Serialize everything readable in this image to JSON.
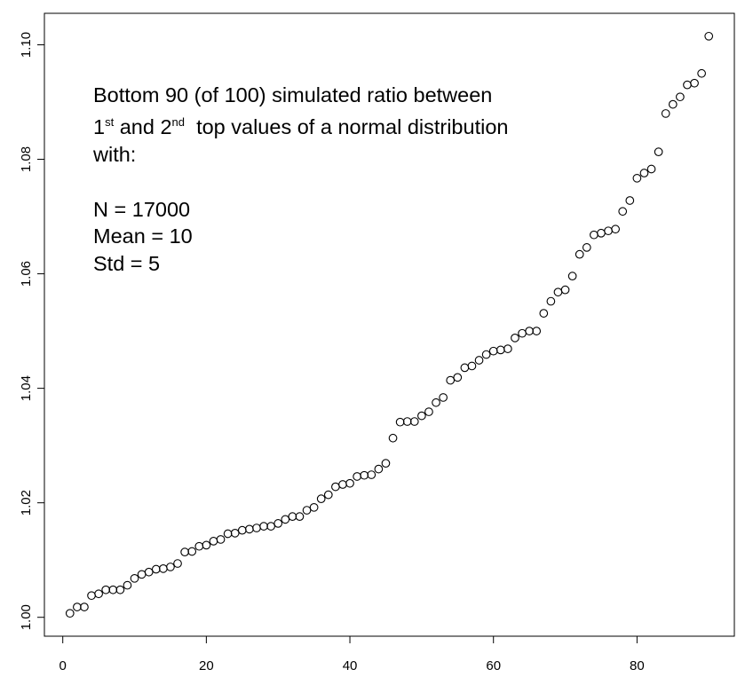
{
  "chart_data": {
    "type": "scatter",
    "title": "",
    "xlabel": "",
    "ylabel": "",
    "xlim": [
      -2.56,
      93.56
    ],
    "ylim": [
      0.9967,
      1.1055
    ],
    "x_ticks": [
      0,
      20,
      40,
      60,
      80
    ],
    "x_tick_labels": [
      "0",
      "20",
      "40",
      "60",
      "80"
    ],
    "y_ticks": [
      1.0,
      1.02,
      1.04,
      1.06,
      1.08,
      1.1
    ],
    "y_tick_labels": [
      "1.00",
      "1.02",
      "1.04",
      "1.06",
      "1.08",
      "1.10"
    ],
    "grid": false,
    "marker": "open-circle",
    "marker_color": "#000000",
    "annotation": {
      "line1": "Bottom 90 (of 100) simulated ratio between",
      "line2_a": "1",
      "line2_sup1": "st",
      "line2_b": " and 2",
      "line2_sup2": "nd",
      "line2_c": "  top values of a normal distribution",
      "line3": "with:",
      "line4": "N = 17000",
      "line5": "Mean = 10",
      "line6": "Std = 5"
    },
    "y": [
      1.0007,
      1.0018,
      1.0018,
      1.0038,
      1.0041,
      1.0048,
      1.0048,
      1.0048,
      1.0056,
      1.0068,
      1.0075,
      1.0079,
      1.0084,
      1.0085,
      1.0088,
      1.0094,
      1.0114,
      1.0115,
      1.0124,
      1.0126,
      1.0133,
      1.0136,
      1.0146,
      1.0147,
      1.0152,
      1.0154,
      1.0156,
      1.0159,
      1.0159,
      1.0164,
      1.0171,
      1.0176,
      1.0176,
      1.0187,
      1.0192,
      1.0207,
      1.0214,
      1.0228,
      1.0232,
      1.0234,
      1.0246,
      1.0248,
      1.0249,
      1.0259,
      1.0269,
      1.0313,
      1.0341,
      1.0342,
      1.0342,
      1.0352,
      1.0359,
      1.0375,
      1.0384,
      1.0414,
      1.0419,
      1.0436,
      1.0439,
      1.0449,
      1.0459,
      1.0465,
      1.0467,
      1.0469,
      1.0488,
      1.0496,
      1.05,
      1.05,
      1.0531,
      1.0552,
      1.0568,
      1.0572,
      1.0596,
      1.0634,
      1.0646,
      1.0668,
      1.0671,
      1.0675,
      1.0678,
      1.0709,
      1.0728,
      1.0767,
      1.0776,
      1.0783,
      1.0813,
      1.088,
      1.0896,
      1.0909,
      1.093,
      1.0933,
      1.095,
      1.1015
    ]
  }
}
